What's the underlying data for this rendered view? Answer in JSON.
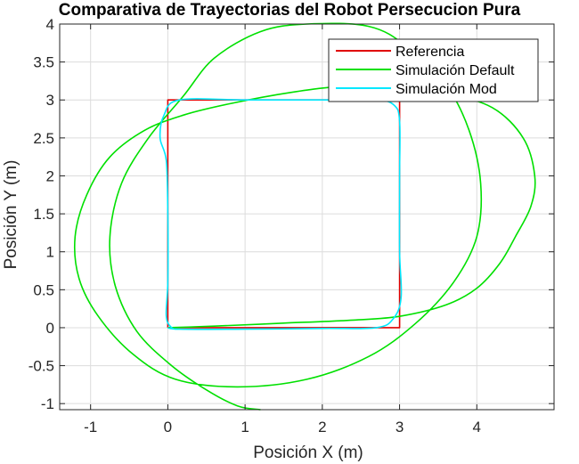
{
  "chart_data": {
    "type": "line",
    "title": "Comparativa de Trayectorias del Robot Persecucion Pura",
    "xlabel": "Posición X (m)",
    "ylabel": "Posición Y (m)",
    "xlim": [
      -1.4,
      5.0
    ],
    "ylim": [
      -1.08,
      4.0
    ],
    "xticks": [
      -1,
      0,
      1,
      2,
      3,
      4
    ],
    "yticks": [
      -1,
      -0.5,
      0,
      0.5,
      1,
      1.5,
      2,
      2.5,
      3,
      3.5,
      4
    ],
    "grid": true,
    "legend_position": "top-right",
    "series": [
      {
        "name": "Referencia",
        "color": "#e00000",
        "points": [
          [
            0,
            0
          ],
          [
            3,
            0
          ],
          [
            3,
            3
          ],
          [
            0,
            3
          ],
          [
            0,
            0
          ]
        ]
      },
      {
        "name": "Simulación Default",
        "color": "#00e000",
        "points": [
          [
            0,
            0
          ],
          [
            0.6,
            0.02
          ],
          [
            1.5,
            0.06
          ],
          [
            2.4,
            0.1
          ],
          [
            3.0,
            0.15
          ],
          [
            3.6,
            0.3
          ],
          [
            4.0,
            0.52
          ],
          [
            4.3,
            0.85
          ],
          [
            4.5,
            1.2
          ],
          [
            4.7,
            1.6
          ],
          [
            4.75,
            2.0
          ],
          [
            4.6,
            2.5
          ],
          [
            4.2,
            2.9
          ],
          [
            3.6,
            3.08
          ],
          [
            3.0,
            3.15
          ],
          [
            2.3,
            3.18
          ],
          [
            1.6,
            3.1
          ],
          [
            0.8,
            2.95
          ],
          [
            0.2,
            2.8
          ],
          [
            -0.3,
            2.6
          ],
          [
            -0.75,
            2.25
          ],
          [
            -1.05,
            1.75
          ],
          [
            -1.2,
            1.2
          ],
          [
            -1.15,
            0.65
          ],
          [
            -0.9,
            0.15
          ],
          [
            -0.45,
            -0.35
          ],
          [
            0.1,
            -0.68
          ],
          [
            0.9,
            -0.78
          ],
          [
            1.8,
            -0.68
          ],
          [
            2.6,
            -0.38
          ],
          [
            3.2,
            0.05
          ],
          [
            3.7,
            0.6
          ],
          [
            4.0,
            1.2
          ],
          [
            4.05,
            1.9
          ],
          [
            3.9,
            2.6
          ],
          [
            3.6,
            3.2
          ],
          [
            3.1,
            3.7
          ],
          [
            2.6,
            3.97
          ],
          [
            1.8,
            4.0
          ],
          [
            1.2,
            3.9
          ],
          [
            0.6,
            3.55
          ],
          [
            0.2,
            3.05
          ],
          [
            -0.25,
            2.5
          ],
          [
            -0.6,
            1.9
          ],
          [
            -0.75,
            1.2
          ],
          [
            -0.68,
            0.55
          ],
          [
            -0.4,
            -0.05
          ],
          [
            0.05,
            -0.5
          ],
          [
            0.5,
            -0.82
          ],
          [
            0.9,
            -1.03
          ],
          [
            1.2,
            -1.08
          ]
        ]
      },
      {
        "name": "Simulación Mod",
        "color": "#00e8ff",
        "points": [
          [
            0.0,
            0.0
          ],
          [
            0.15,
            -0.02
          ],
          [
            1.0,
            -0.02
          ],
          [
            2.0,
            -0.01
          ],
          [
            2.7,
            0.0
          ],
          [
            2.92,
            0.12
          ],
          [
            3.02,
            0.4
          ],
          [
            3.0,
            1.0
          ],
          [
            3.0,
            2.0
          ],
          [
            3.0,
            2.72
          ],
          [
            2.93,
            2.93
          ],
          [
            2.7,
            3.0
          ],
          [
            2.0,
            3.0
          ],
          [
            1.0,
            3.0
          ],
          [
            0.15,
            3.0
          ],
          [
            -0.05,
            2.8
          ],
          [
            -0.1,
            2.5
          ],
          [
            -0.02,
            2.2
          ],
          [
            0.0,
            1.5
          ],
          [
            0.0,
            0.6
          ],
          [
            -0.02,
            0.15
          ],
          [
            0.05,
            0.0
          ],
          [
            0.15,
            -0.02
          ]
        ]
      }
    ]
  }
}
